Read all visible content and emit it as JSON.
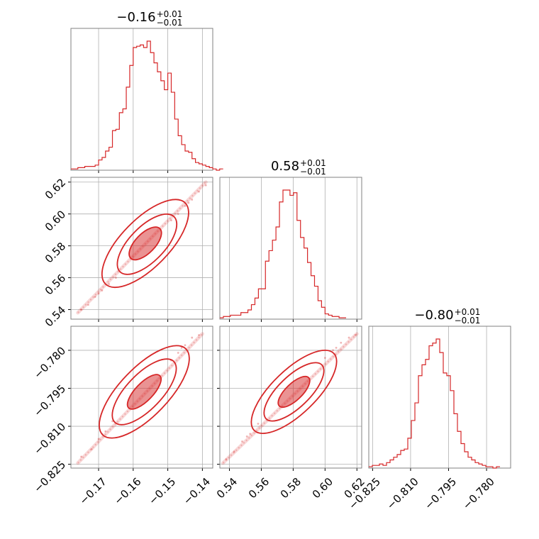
{
  "colors": {
    "series": "#d62728",
    "grid": "#b0b0b0",
    "frame": "#808080"
  },
  "chart_data": [
    {
      "type": "histogram",
      "panel": "hist-0",
      "title": {
        "value": "−0.16",
        "plus": "+0.01",
        "minus": "−0.01"
      },
      "xlim": [
        -0.178,
        -0.137
      ],
      "grid": true,
      "x_ticks": [
        -0.17,
        -0.16,
        -0.15,
        -0.14
      ],
      "bin_start": -0.178,
      "bin_width": 0.001,
      "counts": [
        1,
        1,
        2,
        2,
        3,
        3,
        3,
        4,
        8,
        10,
        15,
        18,
        31,
        32,
        45,
        48,
        65,
        82,
        96,
        97,
        98,
        96,
        101,
        92,
        84,
        77,
        70,
        63,
        76,
        61,
        40,
        27,
        20,
        15,
        14,
        9,
        6,
        5,
        4,
        3,
        2,
        1,
        0,
        1
      ]
    },
    {
      "type": "histogram",
      "panel": "hist-1",
      "title": {
        "value": "0.58",
        "plus": "+0.01",
        "minus": "−0.01"
      },
      "xlim": [
        0.534,
        0.623
      ],
      "grid": true,
      "x_ticks": [
        0.54,
        0.56,
        0.58,
        0.6,
        0.62
      ],
      "bin_start": 0.534,
      "bin_width": 0.0022,
      "counts": [
        1,
        2,
        2,
        3,
        3,
        3,
        5,
        5,
        7,
        11,
        16,
        23,
        23,
        44,
        52,
        60,
        70,
        89,
        98,
        98,
        94,
        96,
        75,
        62,
        54,
        43,
        33,
        25,
        14,
        9,
        4,
        3,
        2,
        2,
        1,
        1
      ]
    },
    {
      "type": "histogram",
      "panel": "hist-2",
      "title": {
        "value": "−0.80",
        "plus": "+0.01",
        "minus": "−0.01"
      },
      "xlim": [
        -0.8265,
        -0.7705
      ],
      "grid": true,
      "x_ticks": [
        -0.825,
        -0.81,
        -0.795,
        -0.78
      ],
      "x_tick_labels": [
        "−0.825",
        "−0.810",
        "−0.795",
        "−0.780"
      ],
      "bin_start": -0.8265,
      "bin_width": 0.0014,
      "counts": [
        1,
        2,
        2,
        3,
        2,
        4,
        6,
        8,
        10,
        13,
        14,
        22,
        35,
        48,
        68,
        76,
        80,
        90,
        92,
        95,
        85,
        70,
        68,
        57,
        40,
        27,
        18,
        12,
        8,
        6,
        4,
        3,
        2,
        1,
        1,
        0,
        1
      ]
    },
    {
      "type": "scatter",
      "panel": "corner-1-0",
      "subtype": "2d-density",
      "x_ticks": [
        -0.17,
        -0.16,
        -0.15,
        -0.14
      ],
      "x_tick_labels": [
        "−0.17",
        "−0.16",
        "−0.15",
        "−0.14"
      ],
      "y_ticks": [
        0.54,
        0.56,
        0.58,
        0.6,
        0.62
      ],
      "y_tick_labels": [
        "0.54",
        "0.56",
        "0.58",
        "0.60",
        "0.62"
      ],
      "xlim": [
        -0.178,
        -0.137
      ],
      "ylim": [
        0.534,
        0.623
      ],
      "ridge_x": [
        -0.176,
        -0.139
      ],
      "ridge_y": [
        0.538,
        0.62
      ],
      "points": [
        [
          -0.175,
          0.54
        ],
        [
          -0.173,
          0.543
        ],
        [
          -0.171,
          0.548
        ],
        [
          -0.169,
          0.552
        ],
        [
          -0.167,
          0.556
        ],
        [
          -0.165,
          0.56
        ],
        [
          -0.149,
          0.596
        ],
        [
          -0.147,
          0.6
        ],
        [
          -0.145,
          0.605
        ],
        [
          -0.143,
          0.609
        ],
        [
          -0.141,
          0.614
        ],
        [
          -0.139,
          0.618
        ],
        [
          -0.17,
          0.55
        ],
        [
          -0.144,
          0.607
        ]
      ],
      "contours": [
        {
          "cx": -0.1565,
          "cy": 0.5815,
          "a": 0.0042,
          "b": 0.0009
        },
        {
          "cx": -0.156,
          "cy": 0.581,
          "a": 0.0078,
          "b": 0.0016
        },
        {
          "cx": -0.1565,
          "cy": 0.5815,
          "a": 0.0115,
          "b": 0.0022
        }
      ]
    },
    {
      "type": "scatter",
      "panel": "corner-2-0",
      "subtype": "2d-density",
      "y_ticks": [
        -0.825,
        -0.81,
        -0.795,
        -0.78
      ],
      "y_tick_labels": [
        "−0.825",
        "−0.810",
        "−0.795",
        "−0.780"
      ],
      "xlim": [
        -0.178,
        -0.137
      ],
      "ylim": [
        -0.8265,
        -0.7705
      ],
      "ridge_x": [
        -0.176,
        -0.14
      ],
      "ridge_y": [
        -0.8245,
        -0.7735
      ],
      "points": [
        [
          -0.175,
          -0.822
        ],
        [
          -0.172,
          -0.819
        ],
        [
          -0.17,
          -0.815
        ],
        [
          -0.168,
          -0.812
        ],
        [
          -0.166,
          -0.808
        ],
        [
          -0.149,
          -0.784
        ],
        [
          -0.147,
          -0.781
        ],
        [
          -0.145,
          -0.778
        ],
        [
          -0.143,
          -0.775
        ],
        [
          -0.141,
          -0.774
        ],
        [
          -0.169,
          -0.813
        ],
        [
          -0.146,
          -0.779
        ]
      ],
      "contours": [
        {
          "cx": -0.1568,
          "cy": -0.7964,
          "a": 0.0045,
          "b": 0.0008
        },
        {
          "cx": -0.1568,
          "cy": -0.7964,
          "a": 0.0085,
          "b": 0.0016
        },
        {
          "cx": -0.1568,
          "cy": -0.7964,
          "a": 0.012,
          "b": 0.0022
        }
      ]
    },
    {
      "type": "scatter",
      "panel": "corner-2-1",
      "subtype": "2d-density",
      "x_ticks": [
        0.54,
        0.56,
        0.58,
        0.6,
        0.62
      ],
      "x_tick_labels": [
        "0.54",
        "0.56",
        "0.58",
        "0.60",
        "0.62"
      ],
      "xlim": [
        0.534,
        0.623
      ],
      "ylim": [
        -0.8265,
        -0.7705
      ],
      "ridge_x": [
        0.536,
        0.62
      ],
      "ridge_y": [
        -0.8245,
        -0.7735
      ],
      "points": [
        [
          0.538,
          -0.823
        ],
        [
          0.543,
          -0.82
        ],
        [
          0.548,
          -0.816
        ],
        [
          0.553,
          -0.813
        ],
        [
          0.558,
          -0.809
        ],
        [
          0.6,
          -0.783
        ],
        [
          0.605,
          -0.78
        ],
        [
          0.61,
          -0.777
        ],
        [
          0.615,
          -0.775
        ],
        [
          0.619,
          -0.774
        ],
        [
          0.551,
          -0.814
        ],
        [
          0.607,
          -0.779
        ]
      ],
      "contours": [
        {
          "cx": 0.5805,
          "cy": -0.7964,
          "a": 0.0092,
          "b": 0.0017
        },
        {
          "cx": 0.5805,
          "cy": -0.7964,
          "a": 0.0175,
          "b": 0.0032
        },
        {
          "cx": 0.5805,
          "cy": -0.7964,
          "a": 0.025,
          "b": 0.0045
        }
      ]
    }
  ]
}
